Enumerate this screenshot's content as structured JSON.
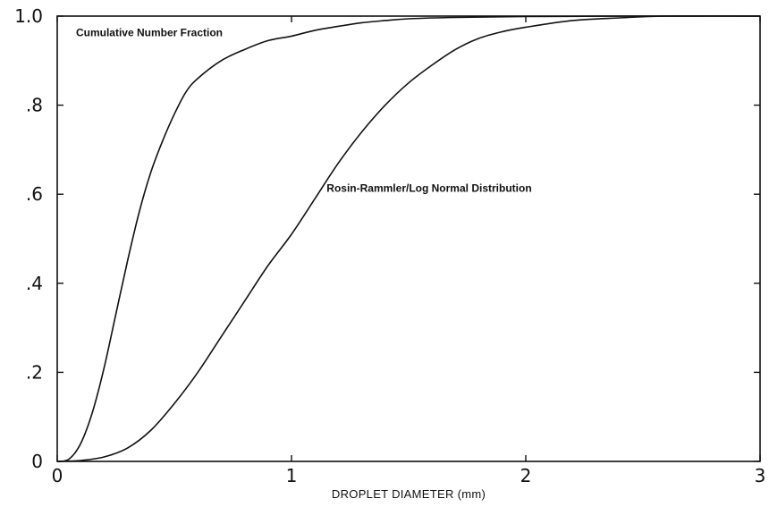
{
  "chart_data": {
    "type": "line",
    "title": "",
    "xlabel": "DROPLET DIAMETER (mm)",
    "ylabel": "",
    "xlim": [
      0,
      3
    ],
    "ylim": [
      0,
      1
    ],
    "xticks": [
      0,
      1,
      2,
      3
    ],
    "xtick_labels": [
      "0",
      "1",
      "2",
      "3"
    ],
    "yticks": [
      0,
      0.2,
      0.4,
      0.6,
      0.8,
      1.0
    ],
    "ytick_labels": [
      "0",
      ".2",
      ".4",
      ".6",
      ".8",
      "1.0"
    ],
    "grid": false,
    "annotations": [
      {
        "text": "Cumulative Number Fraction",
        "x": 0.08,
        "y": 0.955
      },
      {
        "text": "Rosin-Rammler/Log Normal Distribution",
        "x": 1.15,
        "y": 0.605
      }
    ],
    "series": [
      {
        "x": [
          0,
          0.05,
          0.1,
          0.15,
          0.2,
          0.25,
          0.3,
          0.35,
          0.4,
          0.45,
          0.5,
          0.55,
          0.6,
          0.7,
          0.8,
          0.9,
          1.0,
          1.1,
          1.2,
          1.3,
          1.4,
          1.5,
          1.7,
          2.0,
          2.5,
          3.0
        ],
        "values": [
          0,
          0.005,
          0.04,
          0.11,
          0.21,
          0.33,
          0.45,
          0.56,
          0.65,
          0.72,
          0.78,
          0.83,
          0.86,
          0.9,
          0.925,
          0.945,
          0.955,
          0.968,
          0.977,
          0.985,
          0.99,
          0.994,
          0.997,
          0.999,
          1.0,
          1.0
        ]
      },
      {
        "x": [
          0,
          0.1,
          0.2,
          0.3,
          0.4,
          0.5,
          0.6,
          0.7,
          0.8,
          0.9,
          1.0,
          1.1,
          1.2,
          1.3,
          1.4,
          1.5,
          1.6,
          1.7,
          1.8,
          1.9,
          2.0,
          2.2,
          2.4,
          2.6,
          3.0
        ],
        "values": [
          0,
          0.002,
          0.01,
          0.03,
          0.07,
          0.13,
          0.2,
          0.28,
          0.36,
          0.44,
          0.51,
          0.59,
          0.67,
          0.74,
          0.8,
          0.85,
          0.89,
          0.925,
          0.95,
          0.965,
          0.975,
          0.99,
          0.996,
          1.0,
          1.0
        ]
      }
    ]
  }
}
